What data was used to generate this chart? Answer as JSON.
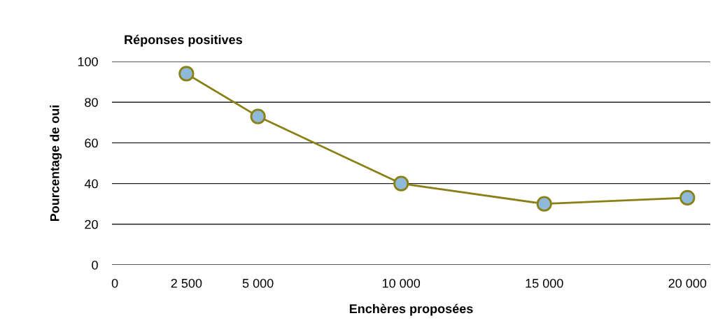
{
  "chart_data": {
    "type": "line",
    "title": "Réponses positives",
    "xlabel": "Enchères proposées",
    "ylabel": "Pourcentage de oui",
    "x": [
      2500,
      5000,
      10000,
      15000,
      20000
    ],
    "series": [
      {
        "color": "#8a8016",
        "values": [
          94,
          73,
          40,
          30,
          33
        ]
      }
    ],
    "marker": "circle",
    "xlim": [
      -100,
      20800
    ],
    "xticks": [
      0,
      {
        "value": 2500,
        "label": "2 500"
      },
      {
        "value": 5000,
        "label": "5 000"
      },
      {
        "value": 10000,
        "label": "10 000"
      },
      {
        "value": 15000,
        "label": "15 000"
      },
      {
        "value": 20000,
        "label": "20 000"
      }
    ],
    "ylim": [
      0,
      100
    ],
    "yticks": [
      0,
      20,
      40,
      60,
      80,
      100
    ],
    "grid": "y",
    "legend": false
  }
}
